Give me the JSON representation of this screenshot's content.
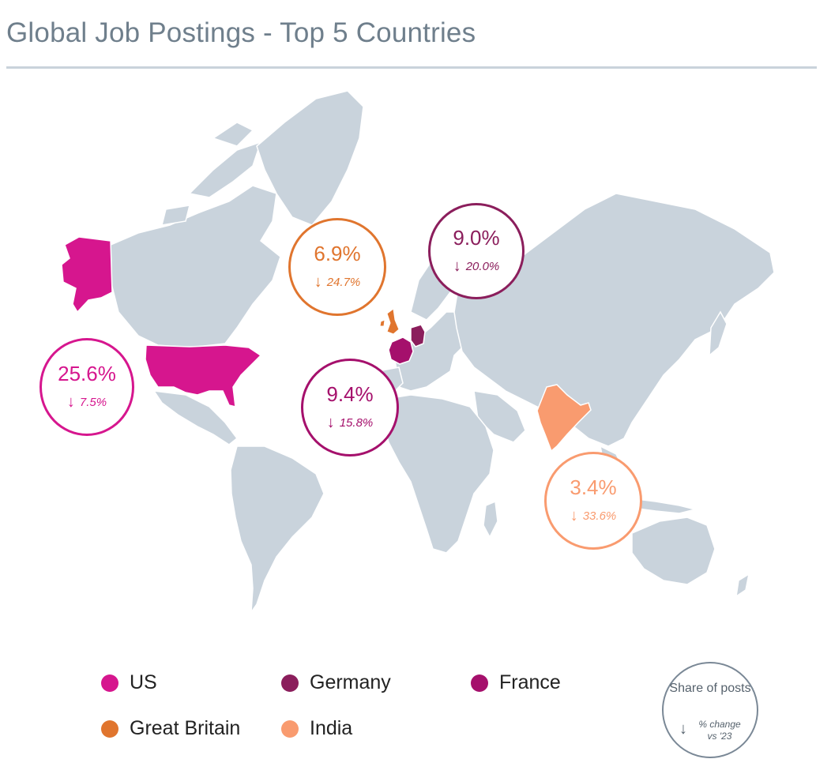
{
  "title": "Global Job Postings - Top 5 Countries",
  "colors": {
    "land": "#c9d3dc",
    "us": "#d6168e",
    "germany": "#8b1e5c",
    "france": "#a5106c",
    "great_britain": "#e0752e",
    "india": "#f99b6f"
  },
  "countries": [
    {
      "name": "US",
      "share": "25.6%",
      "change": "7.5%",
      "color": "#d6168e",
      "direction": "down"
    },
    {
      "name": "Germany",
      "share": "9.0%",
      "change": "20.0%",
      "color": "#8b1e5c",
      "direction": "down"
    },
    {
      "name": "France",
      "share": "9.4%",
      "change": "15.8%",
      "color": "#a5106c",
      "direction": "down"
    },
    {
      "name": "Great Britain",
      "share": "6.9%",
      "change": "24.7%",
      "color": "#e0752e",
      "direction": "down"
    },
    {
      "name": "India",
      "share": "3.4%",
      "change": "33.6%",
      "color": "#f99b6f",
      "direction": "down"
    }
  ],
  "legend": {
    "us": "US",
    "germany": "Germany",
    "france": "France",
    "great_britain": "Great Britain",
    "india": "India"
  },
  "key": {
    "share_label": "Share of posts",
    "arrow": "↓",
    "change_label": "% change vs '23"
  }
}
